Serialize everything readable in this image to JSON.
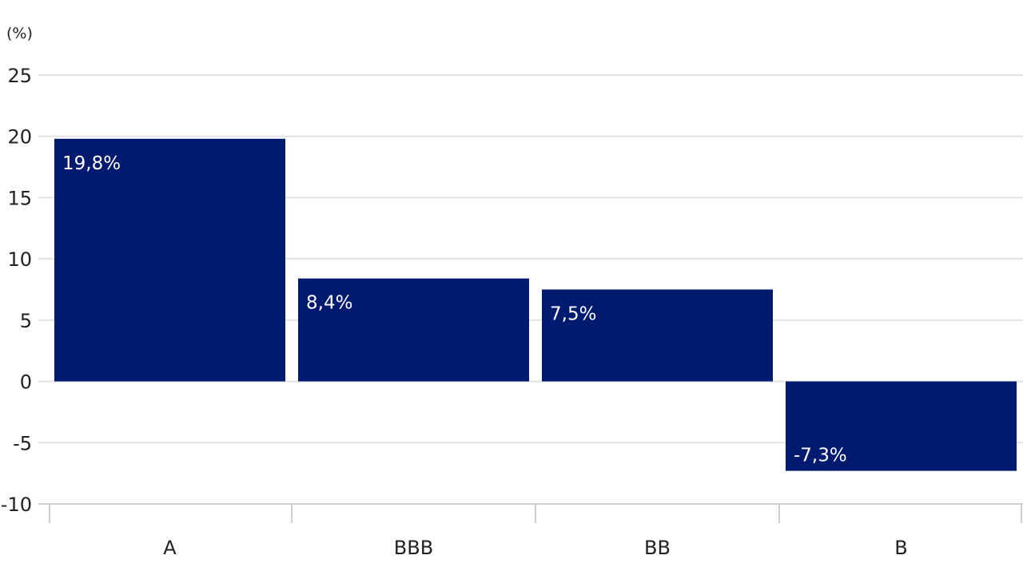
{
  "chart_data": {
    "type": "bar",
    "ylabel": "(%)",
    "categories": [
      "A",
      "BBB",
      "BB",
      "B"
    ],
    "values": [
      19.8,
      8.4,
      7.5,
      -7.3
    ],
    "data_labels": [
      "19,8%",
      "8,4%",
      "7,5%",
      "-7,3%"
    ],
    "ylim": [
      -10,
      25
    ],
    "yticks": [
      25,
      20,
      15,
      10,
      5,
      0,
      -5,
      -10
    ],
    "ytick_labels": [
      "25",
      "20",
      "15",
      "10",
      "5",
      "0",
      "-5",
      "-10"
    ],
    "grid": true,
    "legend": "none",
    "colors": {
      "bar": "#001a70",
      "grid": "#e3e3e3",
      "axis": "#cfcfcf",
      "text": "#222222",
      "label_text": "#ffffff"
    }
  }
}
